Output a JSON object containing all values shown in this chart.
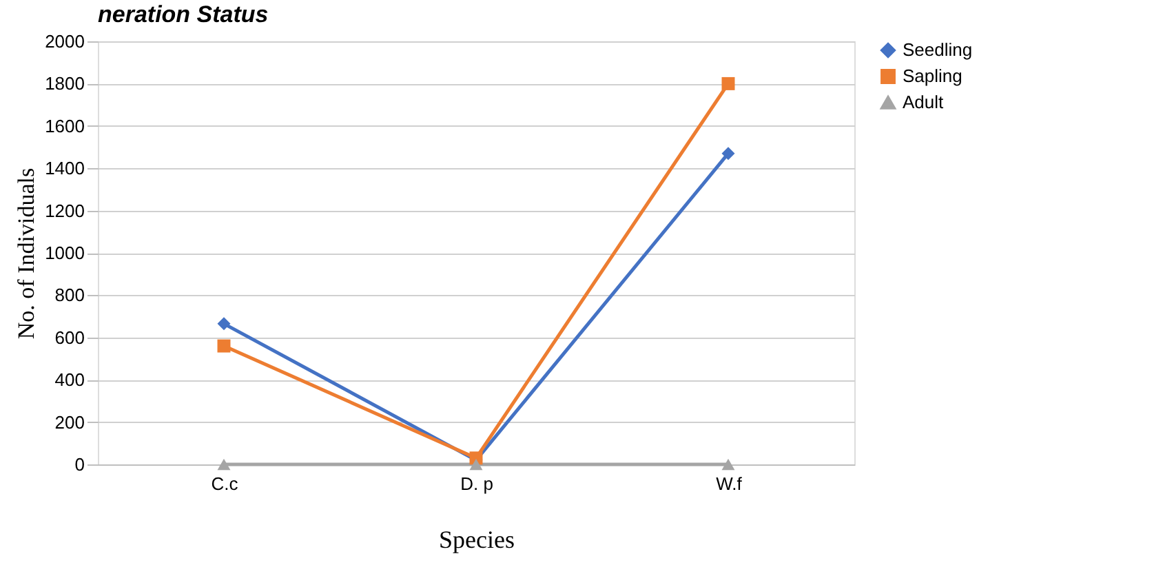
{
  "chart_data": {
    "type": "line",
    "title": "neration Status",
    "xlabel": "Species",
    "ylabel": "No. of Individuals",
    "categories": [
      "C.c",
      "D. p",
      "W.f"
    ],
    "series": [
      {
        "name": "Seedling",
        "color": "#4472c4",
        "marker": "diamond",
        "values": [
          665,
          20,
          1470
        ]
      },
      {
        "name": "Sapling",
        "color": "#ed7d31",
        "marker": "square",
        "values": [
          560,
          30,
          1800
        ]
      },
      {
        "name": "Adult",
        "color": "#a5a5a5",
        "marker": "triangle",
        "values": [
          0,
          0,
          0
        ]
      }
    ],
    "ylim": [
      0,
      2000
    ],
    "yticks": [
      0,
      200,
      400,
      600,
      800,
      1000,
      1200,
      1400,
      1600,
      1800,
      2000
    ],
    "grid": "y",
    "legend": "right"
  }
}
